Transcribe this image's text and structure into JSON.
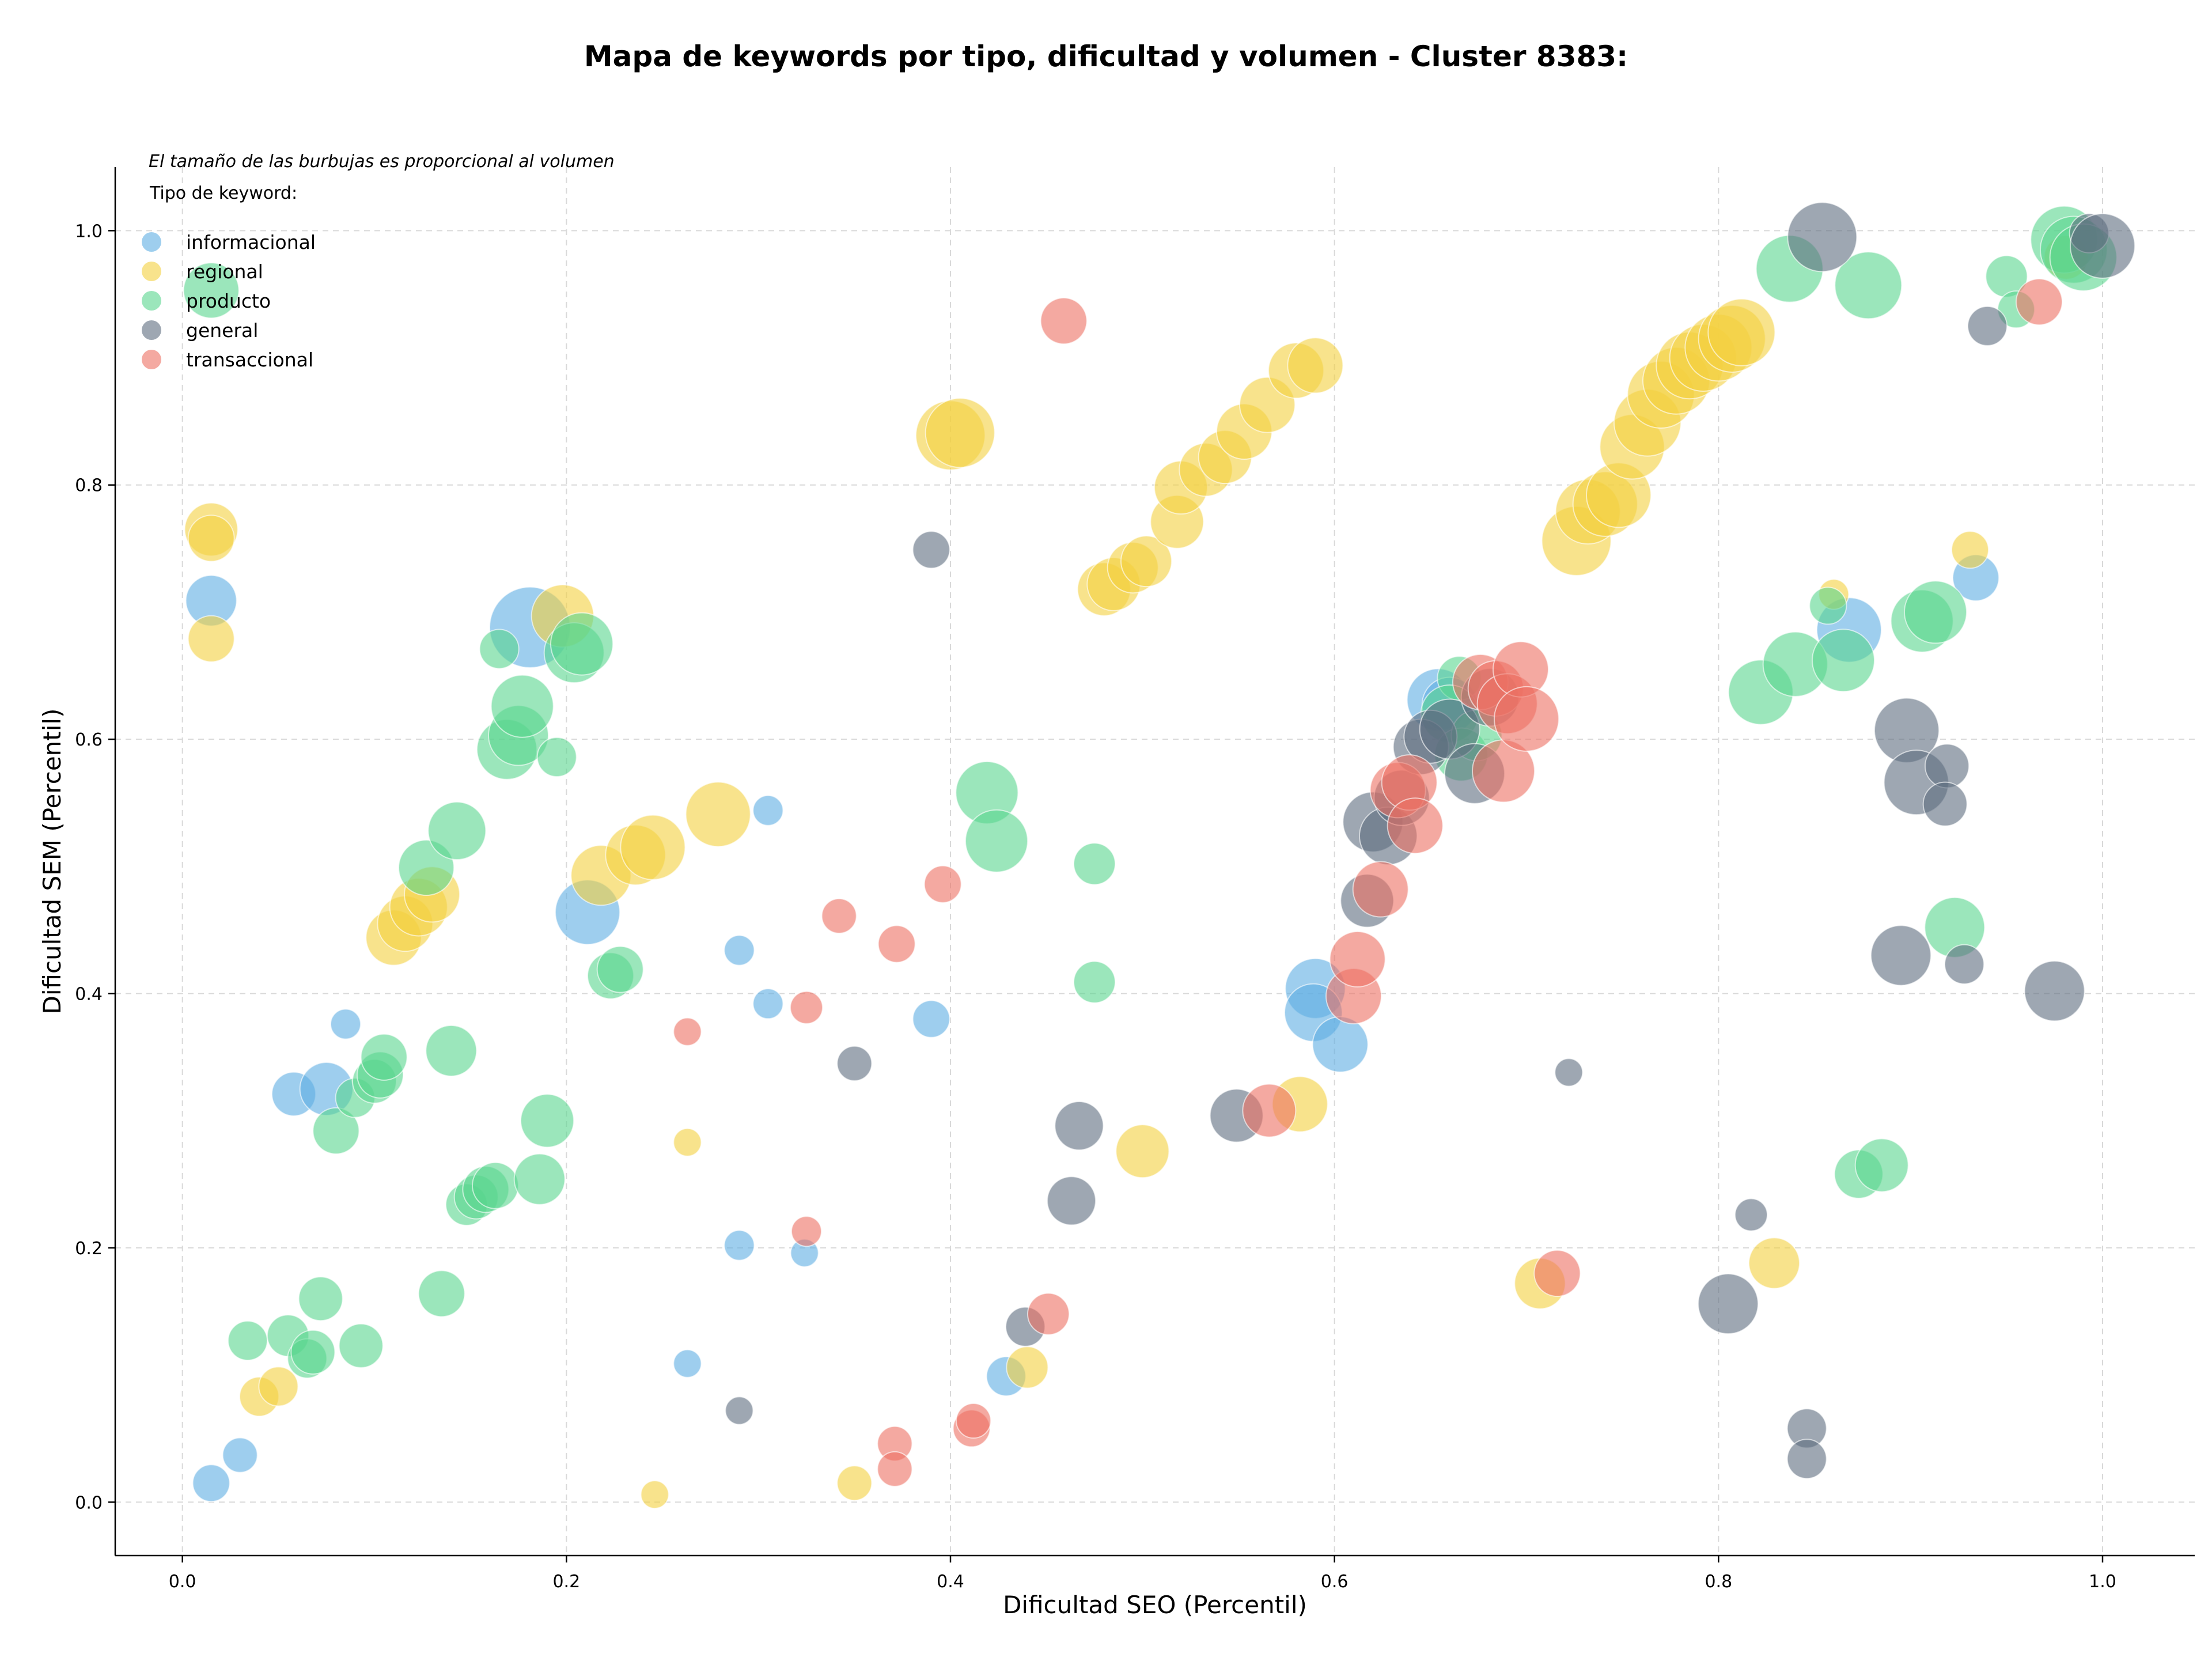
{
  "chart_data": {
    "type": "scatter",
    "title": "Mapa de keywords por tipo, dificultad y volumen - Cluster 8383:",
    "xlabel": "Dificultad SEO (Percentil)",
    "ylabel": "Dificultad SEM (Percentil)",
    "note": "El tamaño de las burbujas es proporcional al volumen",
    "legend_title": "Tipo de keyword:",
    "legend_position": "top-left",
    "grid": true,
    "xlim": [
      -0.035,
      1.048
    ],
    "ylim": [
      -0.042,
      1.05
    ],
    "xticks": [
      {
        "v": 0.0,
        "label": "0.0"
      },
      {
        "v": 0.2,
        "label": "0.2"
      },
      {
        "v": 0.4,
        "label": "0.4"
      },
      {
        "v": 0.6,
        "label": "0.6"
      },
      {
        "v": 0.8,
        "label": "0.8"
      },
      {
        "v": 1.0,
        "label": "1.0"
      }
    ],
    "yticks": [
      {
        "v": 0.0,
        "label": "0.0"
      },
      {
        "v": 0.2,
        "label": "0.2"
      },
      {
        "v": 0.4,
        "label": "0.4"
      },
      {
        "v": 0.6,
        "label": "0.6"
      },
      {
        "v": 0.8,
        "label": "0.8"
      },
      {
        "v": 1.0,
        "label": "1.0"
      }
    ],
    "series": [
      {
        "name": "informacional",
        "color": "#5DADE2",
        "points": [
          [
            0.015,
            0.709,
            2.2
          ],
          [
            0.015,
            0.015,
            1.6
          ],
          [
            0.03,
            0.037,
            1.5
          ],
          [
            0.058,
            0.321,
            1.9
          ],
          [
            0.075,
            0.325,
            2.3
          ],
          [
            0.085,
            0.376,
            1.3
          ],
          [
            0.181,
            0.688,
            3.5
          ],
          [
            0.211,
            0.464,
            2.8
          ],
          [
            0.29,
            0.434,
            1.3
          ],
          [
            0.29,
            0.202,
            1.3
          ],
          [
            0.305,
            0.544,
            1.3
          ],
          [
            0.305,
            0.392,
            1.3
          ],
          [
            0.263,
            0.109,
            1.2
          ],
          [
            0.324,
            0.196,
            1.2
          ],
          [
            0.39,
            0.38,
            1.6
          ],
          [
            0.429,
            0.099,
            1.7
          ],
          [
            0.59,
            0.404,
            2.6
          ],
          [
            0.589,
            0.385,
            2.5
          ],
          [
            0.603,
            0.36,
            2.4
          ],
          [
            0.654,
            0.631,
            2.7
          ],
          [
            0.66,
            0.627,
            2.4
          ],
          [
            0.868,
            0.686,
            2.8
          ],
          [
            0.934,
            0.727,
            2.0
          ]
        ]
      },
      {
        "name": "regional",
        "color": "#F4D03F",
        "points": [
          [
            0.015,
            0.765,
            2.3
          ],
          [
            0.015,
            0.758,
            2.0
          ],
          [
            0.015,
            0.679,
            2.0
          ],
          [
            0.04,
            0.083,
            1.7
          ],
          [
            0.05,
            0.091,
            1.7
          ],
          [
            0.11,
            0.444,
            2.4
          ],
          [
            0.116,
            0.455,
            2.4
          ],
          [
            0.123,
            0.468,
            2.5
          ],
          [
            0.13,
            0.478,
            2.4
          ],
          [
            0.198,
            0.697,
            2.7
          ],
          [
            0.218,
            0.493,
            2.6
          ],
          [
            0.236,
            0.509,
            2.6
          ],
          [
            0.245,
            0.515,
            2.8
          ],
          [
            0.279,
            0.541,
            2.8
          ],
          [
            0.263,
            0.283,
            1.2
          ],
          [
            0.246,
            0.006,
            1.2
          ],
          [
            0.35,
            0.015,
            1.5
          ],
          [
            0.4,
            0.839,
            3.0
          ],
          [
            0.405,
            0.841,
            3.0
          ],
          [
            0.48,
            0.718,
            2.3
          ],
          [
            0.485,
            0.722,
            2.3
          ],
          [
            0.495,
            0.735,
            2.2
          ],
          [
            0.502,
            0.74,
            2.2
          ],
          [
            0.518,
            0.771,
            2.3
          ],
          [
            0.52,
            0.798,
            2.3
          ],
          [
            0.533,
            0.812,
            2.3
          ],
          [
            0.543,
            0.822,
            2.3
          ],
          [
            0.553,
            0.842,
            2.4
          ],
          [
            0.565,
            0.863,
            2.4
          ],
          [
            0.58,
            0.89,
            2.4
          ],
          [
            0.59,
            0.894,
            2.4
          ],
          [
            0.5,
            0.276,
            2.3
          ],
          [
            0.582,
            0.313,
            2.4
          ],
          [
            0.44,
            0.106,
            1.8
          ],
          [
            0.707,
            0.172,
            2.2
          ],
          [
            0.726,
            0.756,
            3.0
          ],
          [
            0.732,
            0.779,
            2.8
          ],
          [
            0.741,
            0.785,
            2.8
          ],
          [
            0.748,
            0.792,
            2.8
          ],
          [
            0.755,
            0.83,
            2.8
          ],
          [
            0.763,
            0.849,
            2.9
          ],
          [
            0.77,
            0.871,
            2.9
          ],
          [
            0.778,
            0.882,
            2.9
          ],
          [
            0.785,
            0.894,
            2.9
          ],
          [
            0.792,
            0.9,
            2.9
          ],
          [
            0.8,
            0.908,
            2.9
          ],
          [
            0.807,
            0.915,
            2.9
          ],
          [
            0.812,
            0.92,
            2.9
          ],
          [
            0.829,
            0.188,
            2.2
          ],
          [
            0.86,
            0.714,
            1.3
          ],
          [
            0.931,
            0.749,
            1.6
          ],
          [
            0.981,
            0.979,
            1.9
          ]
        ]
      },
      {
        "name": "producto",
        "color": "#58D68D",
        "points": [
          [
            0.015,
            0.953,
            2.4
          ],
          [
            0.034,
            0.127,
            1.7
          ],
          [
            0.055,
            0.131,
            1.8
          ],
          [
            0.065,
            0.113,
            1.7
          ],
          [
            0.068,
            0.118,
            1.9
          ],
          [
            0.072,
            0.16,
            1.9
          ],
          [
            0.08,
            0.292,
            2.0
          ],
          [
            0.09,
            0.318,
            1.7
          ],
          [
            0.093,
            0.123,
            1.9
          ],
          [
            0.1,
            0.331,
            1.9
          ],
          [
            0.103,
            0.336,
            2.0
          ],
          [
            0.105,
            0.35,
            2.0
          ],
          [
            0.135,
            0.164,
            2.0
          ],
          [
            0.14,
            0.355,
            2.2
          ],
          [
            0.127,
            0.499,
            2.4
          ],
          [
            0.143,
            0.528,
            2.5
          ],
          [
            0.148,
            0.234,
            1.8
          ],
          [
            0.153,
            0.24,
            1.9
          ],
          [
            0.158,
            0.246,
            2.0
          ],
          [
            0.163,
            0.249,
            2.0
          ],
          [
            0.165,
            0.671,
            1.7
          ],
          [
            0.169,
            0.592,
            2.6
          ],
          [
            0.175,
            0.603,
            2.6
          ],
          [
            0.177,
            0.626,
            2.7
          ],
          [
            0.186,
            0.254,
            2.2
          ],
          [
            0.19,
            0.3,
            2.3
          ],
          [
            0.195,
            0.586,
            1.7
          ],
          [
            0.204,
            0.668,
            2.6
          ],
          [
            0.208,
            0.675,
            2.7
          ],
          [
            0.223,
            0.414,
            2.0
          ],
          [
            0.228,
            0.419,
            2.0
          ],
          [
            0.419,
            0.558,
            2.7
          ],
          [
            0.424,
            0.52,
            2.7
          ],
          [
            0.475,
            0.502,
            1.8
          ],
          [
            0.475,
            0.409,
            1.8
          ],
          [
            0.665,
            0.648,
            1.9
          ],
          [
            0.66,
            0.62,
            2.5
          ],
          [
            0.666,
            0.588,
            2.3
          ],
          [
            0.674,
            0.603,
            2.2
          ],
          [
            0.822,
            0.637,
            2.8
          ],
          [
            0.837,
            0.97,
            2.9
          ],
          [
            0.84,
            0.659,
            2.8
          ],
          [
            0.865,
            0.662,
            2.7
          ],
          [
            0.878,
            0.957,
            2.9
          ],
          [
            0.857,
            0.705,
            1.6
          ],
          [
            0.873,
            0.258,
            2.1
          ],
          [
            0.885,
            0.265,
            2.3
          ],
          [
            0.906,
            0.693,
            2.7
          ],
          [
            0.913,
            0.7,
            2.7
          ],
          [
            0.923,
            0.452,
            2.6
          ],
          [
            0.95,
            0.964,
            1.8
          ],
          [
            0.955,
            0.938,
            1.6
          ],
          [
            0.98,
            0.993,
            2.9
          ],
          [
            0.985,
            0.985,
            2.9
          ],
          [
            0.99,
            0.979,
            2.9
          ]
        ]
      },
      {
        "name": "general",
        "color": "#5D6D7E",
        "points": [
          [
            0.39,
            0.749,
            1.6
          ],
          [
            0.35,
            0.345,
            1.5
          ],
          [
            0.29,
            0.072,
            1.2
          ],
          [
            0.439,
            0.138,
            1.7
          ],
          [
            0.467,
            0.296,
            2.1
          ],
          [
            0.463,
            0.237,
            2.1
          ],
          [
            0.549,
            0.304,
            2.3
          ],
          [
            0.617,
            0.473,
            2.3
          ],
          [
            0.62,
            0.535,
            2.6
          ],
          [
            0.628,
            0.524,
            2.5
          ],
          [
            0.635,
            0.554,
            2.4
          ],
          [
            0.645,
            0.594,
            2.4
          ],
          [
            0.65,
            0.602,
            2.3
          ],
          [
            0.66,
            0.608,
            2.6
          ],
          [
            0.673,
            0.573,
            2.6
          ],
          [
            0.681,
            0.633,
            2.5
          ],
          [
            0.722,
            0.338,
            1.2
          ],
          [
            0.805,
            0.156,
            2.6
          ],
          [
            0.817,
            0.226,
            1.4
          ],
          [
            0.846,
            0.058,
            1.7
          ],
          [
            0.846,
            0.034,
            1.7
          ],
          [
            0.854,
            0.995,
            3.0
          ],
          [
            0.895,
            0.43,
            2.6
          ],
          [
            0.898,
            0.607,
            2.8
          ],
          [
            0.903,
            0.566,
            2.8
          ],
          [
            0.919,
            0.579,
            1.9
          ],
          [
            0.918,
            0.549,
            1.9
          ],
          [
            0.928,
            0.423,
            1.7
          ],
          [
            0.94,
            0.925,
            1.7
          ],
          [
            0.975,
            0.402,
            2.6
          ],
          [
            0.993,
            0.998,
            1.7
          ],
          [
            1.0,
            0.988,
            2.8
          ]
        ]
      },
      {
        "name": "transaccional",
        "color": "#EC7063",
        "points": [
          [
            0.459,
            0.929,
            2.0
          ],
          [
            0.263,
            0.37,
            1.2
          ],
          [
            0.342,
            0.461,
            1.5
          ],
          [
            0.372,
            0.439,
            1.6
          ],
          [
            0.325,
            0.389,
            1.4
          ],
          [
            0.325,
            0.213,
            1.3
          ],
          [
            0.396,
            0.486,
            1.6
          ],
          [
            0.371,
            0.046,
            1.5
          ],
          [
            0.371,
            0.026,
            1.5
          ],
          [
            0.411,
            0.058,
            1.6
          ],
          [
            0.412,
            0.064,
            1.5
          ],
          [
            0.451,
            0.148,
            1.8
          ],
          [
            0.566,
            0.308,
            2.3
          ],
          [
            0.61,
            0.398,
            2.4
          ],
          [
            0.612,
            0.427,
            2.4
          ],
          [
            0.624,
            0.482,
            2.4
          ],
          [
            0.633,
            0.56,
            2.4
          ],
          [
            0.639,
            0.566,
            2.4
          ],
          [
            0.642,
            0.532,
            2.4
          ],
          [
            0.676,
            0.645,
            2.4
          ],
          [
            0.684,
            0.64,
            2.4
          ],
          [
            0.688,
            0.575,
            2.7
          ],
          [
            0.69,
            0.628,
            2.6
          ],
          [
            0.697,
            0.655,
            2.4
          ],
          [
            0.7,
            0.616,
            2.8
          ],
          [
            0.716,
            0.18,
            2.0
          ],
          [
            0.967,
            0.944,
            2.0
          ]
        ]
      }
    ]
  }
}
